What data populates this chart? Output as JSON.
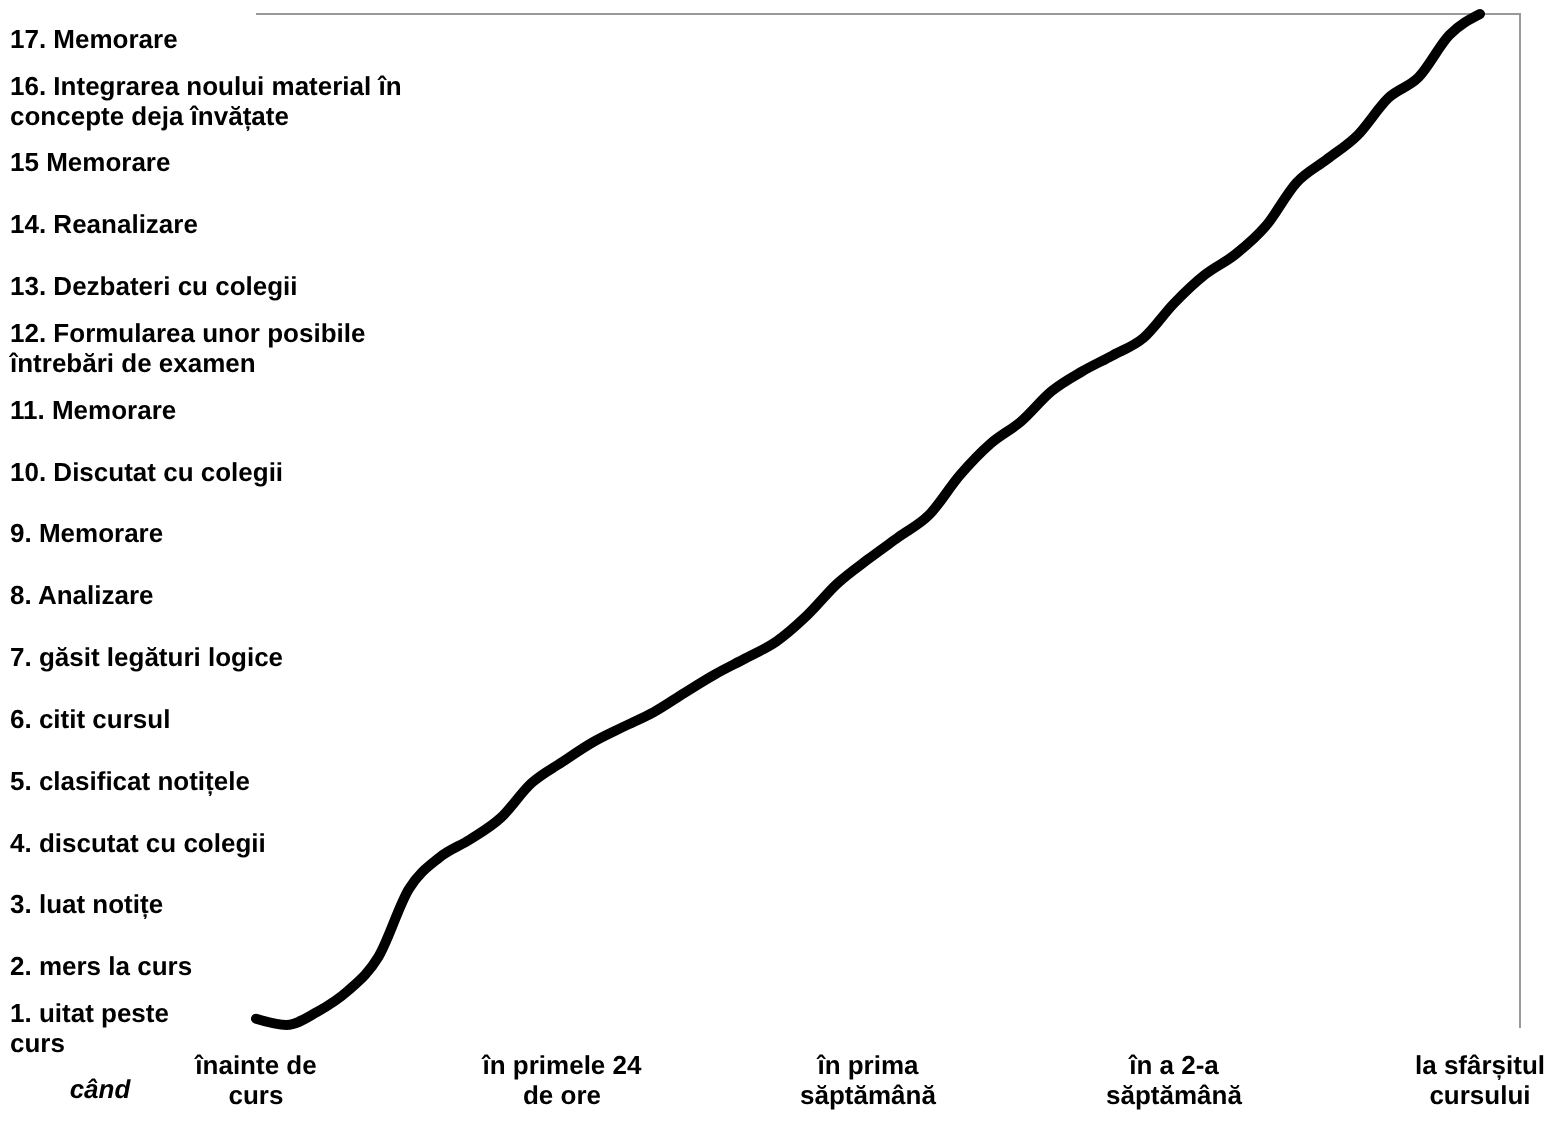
{
  "chart_data": {
    "type": "line",
    "xlabel": "când",
    "categories": [
      "înainte de curs",
      null,
      null,
      null,
      null,
      null,
      null,
      null,
      null,
      null,
      "în primele 24 de ore",
      null,
      null,
      null,
      null,
      null,
      null,
      null,
      null,
      null,
      "în prima săptămână",
      null,
      null,
      null,
      null,
      null,
      null,
      null,
      null,
      null,
      "în a 2-a săptămână",
      null,
      null,
      null,
      null,
      null,
      null,
      null,
      null,
      null,
      "la sfârșitul cursului"
    ],
    "yticks": [
      {
        "value": 1,
        "label": "1. uitat peste curs"
      },
      {
        "value": 2,
        "label": "2. mers la curs"
      },
      {
        "value": 3,
        "label": "3. luat notițe"
      },
      {
        "value": 4,
        "label": "4. discutat cu colegii"
      },
      {
        "value": 5,
        "label": "5. clasificat notițele"
      },
      {
        "value": 6,
        "label": "6. citit cursul"
      },
      {
        "value": 7,
        "label": "7. găsit legături logice"
      },
      {
        "value": 8,
        "label": "8. Analizare"
      },
      {
        "value": 9,
        "label": "9. Memorare"
      },
      {
        "value": 10,
        "label": "10. Discutat cu colegii"
      },
      {
        "value": 11,
        "label": "11. Memorare"
      },
      {
        "value": 12,
        "label": "12. Formularea unor posibile întrebări de examen"
      },
      {
        "value": 13,
        "label": "13. Dezbateri cu colegii"
      },
      {
        "value": 14,
        "label": "14. Reanalizare"
      },
      {
        "value": 15,
        "label": "15 Memorare"
      },
      {
        "value": 16,
        "label": "16. Integrarea noului material în concepte deja învățate"
      },
      {
        "value": 17,
        "label": "17. Memorare"
      }
    ],
    "ylim": [
      1,
      17.4
    ],
    "grid": false,
    "line_style": "solid",
    "marker": "none",
    "series": [
      {
        "color": "#000000",
        "values": [
          1.15,
          1.05,
          1.26,
          1.6,
          2.15,
          3.25,
          3.76,
          4.05,
          4.4,
          4.96,
          5.3,
          5.62,
          5.87,
          6.11,
          6.42,
          6.72,
          6.98,
          7.25,
          7.67,
          8.19,
          8.58,
          8.94,
          9.3,
          9.94,
          10.45,
          10.81,
          11.3,
          11.62,
          11.88,
          12.16,
          12.72,
          13.18,
          13.51,
          13.97,
          14.67,
          15.05,
          15.44,
          16.04,
          16.38,
          17.06,
          17.4
        ]
      }
    ]
  }
}
